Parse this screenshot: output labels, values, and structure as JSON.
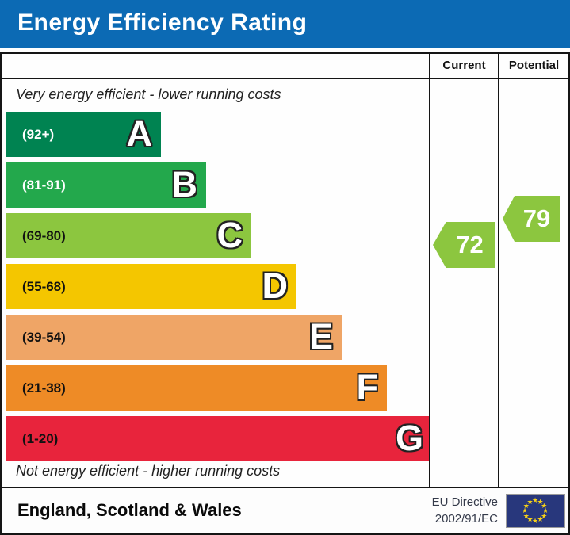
{
  "title": {
    "text": "Energy Efficiency Rating",
    "bg_color": "#0c6ab4",
    "fg_color": "#ffffff"
  },
  "columns": {
    "current": "Current",
    "potential": "Potential"
  },
  "captions": {
    "top": "Very energy efficient - lower running costs",
    "bottom": "Not energy efficient - higher running costs"
  },
  "bands": [
    {
      "letter": "A",
      "range": "(92+)",
      "low": 92,
      "high": 100,
      "color": "#008351",
      "label_color": "#ffffff"
    },
    {
      "letter": "B",
      "range": "(81-91)",
      "low": 81,
      "high": 91,
      "color": "#23a84c",
      "label_color": "#ffffff"
    },
    {
      "letter": "C",
      "range": "(69-80)",
      "low": 69,
      "high": 80,
      "color": "#8cc63f",
      "label_color": "#111111"
    },
    {
      "letter": "D",
      "range": "(55-68)",
      "low": 55,
      "high": 68,
      "color": "#f4c600",
      "label_color": "#111111"
    },
    {
      "letter": "E",
      "range": "(39-54)",
      "low": 39,
      "high": 54,
      "color": "#efa566",
      "label_color": "#111111"
    },
    {
      "letter": "F",
      "range": "(21-38)",
      "low": 21,
      "high": 38,
      "color": "#ee8b26",
      "label_color": "#111111"
    },
    {
      "letter": "G",
      "range": "(1-20)",
      "low": 1,
      "high": 20,
      "color": "#e8243c",
      "label_color": "#111111"
    }
  ],
  "ratings": {
    "current": {
      "value": 72,
      "color": "#8cc63f"
    },
    "potential": {
      "value": 79,
      "color": "#8cc63f"
    }
  },
  "footer": {
    "region": "England, Scotland & Wales",
    "directive_line1": "EU Directive",
    "directive_line2": "2002/91/EC",
    "flag": {
      "star_count": 12,
      "bg_color": "#28377c",
      "star_color": "#f7d117"
    }
  },
  "chart_data": {
    "type": "bar",
    "title": "Energy Efficiency Rating",
    "orientation": "horizontal",
    "categories": [
      "A (92+)",
      "B (81-91)",
      "C (69-80)",
      "D (55-68)",
      "E (39-54)",
      "F (21-38)",
      "G (1-20)"
    ],
    "band_ranges": [
      [
        92,
        100
      ],
      [
        81,
        91
      ],
      [
        69,
        80
      ],
      [
        55,
        68
      ],
      [
        39,
        54
      ],
      [
        21,
        38
      ],
      [
        1,
        20
      ]
    ],
    "band_colors": [
      "#008351",
      "#23a84c",
      "#8cc63f",
      "#f4c600",
      "#efa566",
      "#ee8b26",
      "#e8243c"
    ],
    "series": [
      {
        "name": "Current",
        "value": 72,
        "band": "C"
      },
      {
        "name": "Potential",
        "value": 79,
        "band": "C"
      }
    ],
    "annotations": [
      "Very energy efficient - lower running costs",
      "Not energy efficient - higher running costs"
    ],
    "footnote": "England, Scotland & Wales — EU Directive 2002/91/EC"
  }
}
